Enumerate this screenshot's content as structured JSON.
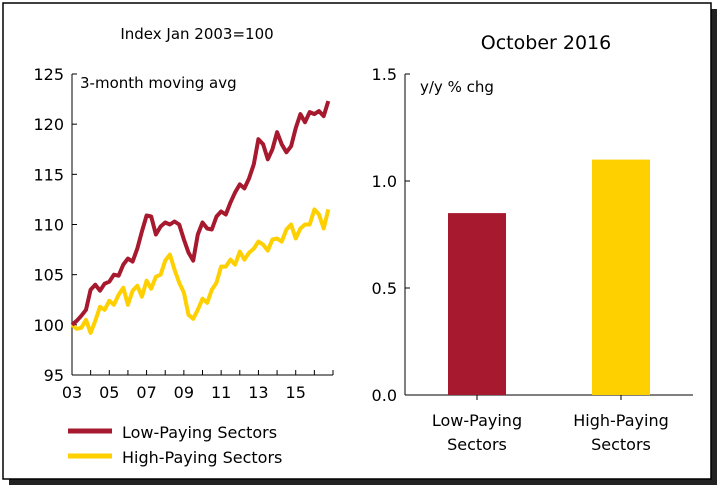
{
  "chart_data": [
    {
      "type": "line",
      "title": "Index Jan 2003=100",
      "annotation": "3-month moving avg",
      "xlabel": "",
      "ylabel": "",
      "ylim": [
        95,
        125
      ],
      "yticks": [
        "95",
        "100",
        "105",
        "110",
        "115",
        "120",
        "125"
      ],
      "xlim": [
        2003,
        2017
      ],
      "xticks": [
        "03",
        "05",
        "07",
        "09",
        "11",
        "13",
        "15"
      ],
      "legend_position": "bottom",
      "grid": false,
      "series": [
        {
          "name": "Low-Paying Sectors",
          "color": "#A6192E",
          "x": [
            2003.0,
            2003.25,
            2003.5,
            2003.75,
            2004.0,
            2004.25,
            2004.5,
            2004.75,
            2005.0,
            2005.25,
            2005.5,
            2005.75,
            2006.0,
            2006.25,
            2006.5,
            2006.75,
            2007.0,
            2007.25,
            2007.5,
            2007.75,
            2008.0,
            2008.25,
            2008.5,
            2008.75,
            2009.0,
            2009.25,
            2009.5,
            2009.75,
            2010.0,
            2010.25,
            2010.5,
            2010.75,
            2011.0,
            2011.25,
            2011.5,
            2011.75,
            2012.0,
            2012.25,
            2012.5,
            2012.75,
            2013.0,
            2013.25,
            2013.5,
            2013.75,
            2014.0,
            2014.25,
            2014.5,
            2014.75,
            2015.0,
            2015.25,
            2015.5,
            2015.75,
            2016.0,
            2016.25,
            2016.5,
            2016.75
          ],
          "values": [
            100.0,
            100.4,
            100.9,
            101.5,
            103.5,
            104.0,
            103.4,
            104.1,
            104.3,
            105.0,
            104.9,
            106.0,
            106.6,
            106.3,
            107.6,
            109.3,
            110.9,
            110.8,
            109.0,
            109.8,
            110.2,
            110.0,
            110.3,
            110.0,
            108.5,
            107.2,
            106.4,
            109.0,
            110.2,
            109.6,
            109.5,
            110.8,
            111.3,
            111.0,
            112.2,
            113.2,
            114.0,
            113.6,
            114.6,
            116.0,
            118.5,
            118.0,
            116.5,
            117.5,
            119.2,
            118.0,
            117.2,
            117.8,
            119.6,
            121.0,
            120.2,
            121.2,
            121.0,
            121.3,
            120.8,
            122.3
          ]
        },
        {
          "name": "High-Paying Sectors",
          "color": "#FFD000",
          "x": [
            2003.0,
            2003.25,
            2003.5,
            2003.75,
            2004.0,
            2004.25,
            2004.5,
            2004.75,
            2005.0,
            2005.25,
            2005.5,
            2005.75,
            2006.0,
            2006.25,
            2006.5,
            2006.75,
            2007.0,
            2007.25,
            2007.5,
            2007.75,
            2008.0,
            2008.25,
            2008.5,
            2008.75,
            2009.0,
            2009.25,
            2009.5,
            2009.75,
            2010.0,
            2010.25,
            2010.5,
            2010.75,
            2011.0,
            2011.25,
            2011.5,
            2011.75,
            2012.0,
            2012.25,
            2012.5,
            2012.75,
            2013.0,
            2013.25,
            2013.5,
            2013.75,
            2014.0,
            2014.25,
            2014.5,
            2014.75,
            2015.0,
            2015.25,
            2015.5,
            2015.75,
            2016.0,
            2016.25,
            2016.5,
            2016.75
          ],
          "values": [
            100.0,
            99.6,
            99.7,
            100.5,
            99.2,
            100.4,
            101.8,
            101.5,
            102.4,
            102.0,
            103.0,
            103.7,
            102.0,
            103.4,
            103.9,
            102.8,
            104.4,
            103.6,
            104.8,
            105.0,
            106.4,
            107.0,
            105.5,
            104.2,
            103.2,
            101.0,
            100.6,
            101.5,
            102.6,
            102.2,
            103.5,
            104.2,
            105.8,
            105.8,
            106.5,
            106.0,
            107.3,
            106.5,
            107.2,
            107.6,
            108.3,
            108.0,
            107.4,
            108.5,
            108.6,
            108.3,
            109.5,
            110.0,
            108.6,
            109.6,
            110.0,
            110.0,
            111.5,
            111.0,
            109.6,
            111.5
          ]
        }
      ]
    },
    {
      "type": "bar",
      "title": "October 2016",
      "annotation": "y/y % chg",
      "categories": [
        "Low-Paying Sectors",
        "High-Paying Sectors"
      ],
      "category_labels": [
        [
          "Low-Paying",
          "Sectors"
        ],
        [
          "High-Paying",
          "Sectors"
        ]
      ],
      "values": [
        0.85,
        1.1
      ],
      "colors": [
        "#A6192E",
        "#FFD000"
      ],
      "xlabel": "",
      "ylabel": "",
      "ylim": [
        0.0,
        1.5
      ],
      "yticks": [
        "0.0",
        "0.5",
        "1.0",
        "1.5"
      ],
      "grid": false
    }
  ]
}
